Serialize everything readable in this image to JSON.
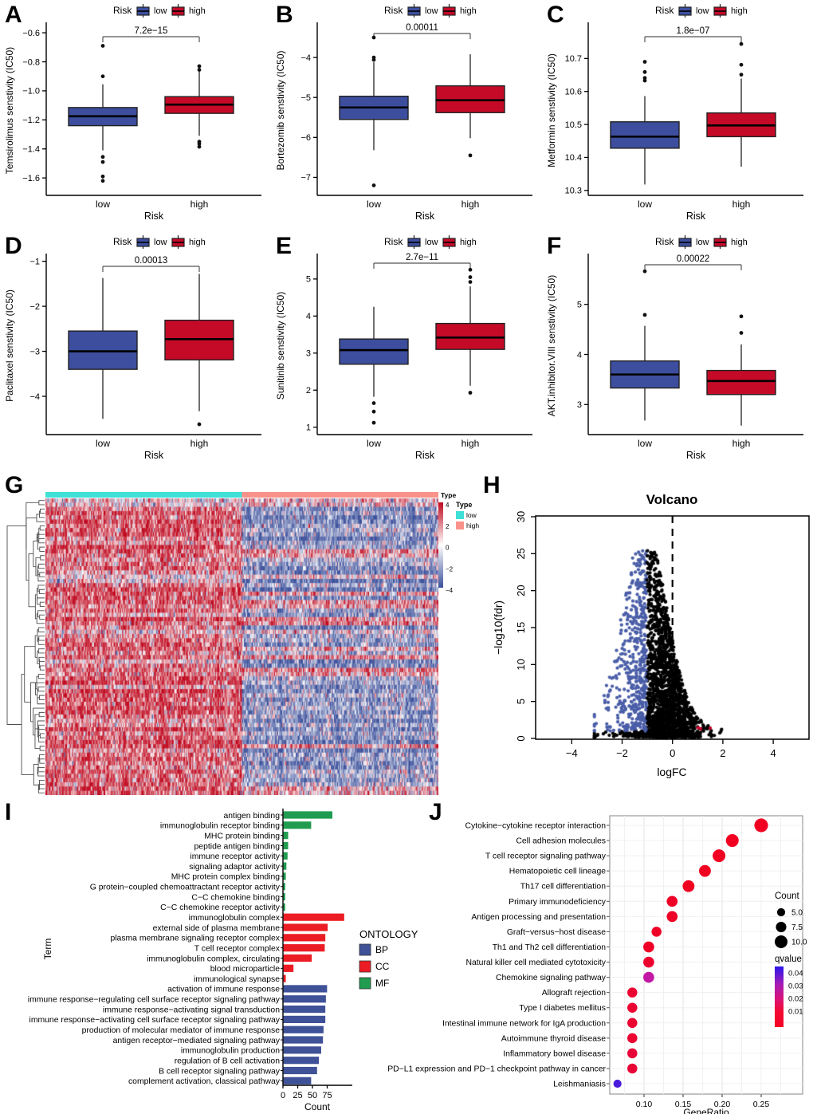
{
  "figure": {
    "panels": [
      "A",
      "B",
      "C",
      "D",
      "E",
      "F",
      "G",
      "H",
      "I",
      "J"
    ]
  },
  "shared": {
    "legend_title": "Risk",
    "group_labels": [
      "low",
      "high"
    ],
    "xlabel": "Risk",
    "colors": {
      "low_blue": "#3D4E9E",
      "high_red": "#C50A28",
      "box_border": "#222222",
      "bracket": "#555555"
    }
  },
  "chart_data": [
    {
      "type": "box",
      "panel": "A",
      "ylabel": "Temsirolimus senstivity (IC50)",
      "p_label": "7.2e−15",
      "ylim": [
        -1.72,
        -0.55
      ],
      "bracket_y": 46,
      "yticks": [
        {
          "v": -0.6,
          "label": "−0.6"
        },
        {
          "v": -0.8,
          "label": "−0.8"
        },
        {
          "v": -1.0,
          "label": "−1.0"
        },
        {
          "v": -1.2,
          "label": "−1.2"
        },
        {
          "v": -1.4,
          "label": "−1.4"
        },
        {
          "v": -1.6,
          "label": "−1.6"
        }
      ],
      "groups": [
        {
          "name": "low",
          "whisker_low": -1.41,
          "q1": -1.24,
          "median": -1.175,
          "q3": -1.115,
          "whisker_high": -0.955,
          "outliers": [
            -0.69,
            -0.9,
            -1.455,
            -1.49,
            -1.59,
            -1.62
          ]
        },
        {
          "name": "high",
          "whisker_low": -1.31,
          "q1": -1.155,
          "median": -1.095,
          "q3": -1.04,
          "whisker_high": -0.845,
          "outliers": [
            -0.83,
            -0.855,
            -1.35,
            -1.365,
            -1.385
          ]
        }
      ]
    },
    {
      "type": "box",
      "panel": "B",
      "ylabel": "Bortezomib senstivity (IC50)",
      "p_label": "0.00011",
      "ylim": [
        -7.45,
        -3.2
      ],
      "bracket_y": 42,
      "yticks": [
        {
          "v": -4,
          "label": "−4"
        },
        {
          "v": -5,
          "label": "−5"
        },
        {
          "v": -6,
          "label": "−6"
        },
        {
          "v": -7,
          "label": "−7"
        }
      ],
      "groups": [
        {
          "name": "low",
          "whisker_low": -6.32,
          "q1": -5.55,
          "median": -5.25,
          "q3": -4.97,
          "whisker_high": -4.12,
          "outliers": [
            -3.5,
            -4.0,
            -4.06,
            -7.2
          ]
        },
        {
          "name": "high",
          "whisker_low": -6.02,
          "q1": -5.38,
          "median": -5.07,
          "q3": -4.71,
          "whisker_high": -3.92,
          "outliers": [
            -6.45
          ]
        }
      ]
    },
    {
      "type": "box",
      "panel": "C",
      "ylabel": "Metformin senstivity (IC50)",
      "p_label": "1.8e−07",
      "ylim": [
        10.285,
        10.8
      ],
      "bracket_y": 46,
      "yticks": [
        {
          "v": 10.7,
          "label": "10.7"
        },
        {
          "v": 10.6,
          "label": "10.6"
        },
        {
          "v": 10.5,
          "label": "10.5"
        },
        {
          "v": 10.4,
          "label": "10.4"
        },
        {
          "v": 10.3,
          "label": "10.3"
        }
      ],
      "groups": [
        {
          "name": "low",
          "whisker_low": 10.318,
          "q1": 10.428,
          "median": 10.463,
          "q3": 10.508,
          "whisker_high": 10.586,
          "outliers": [
            10.633,
            10.641,
            10.659,
            10.69
          ]
        },
        {
          "name": "high",
          "whisker_low": 10.372,
          "q1": 10.463,
          "median": 10.497,
          "q3": 10.535,
          "whisker_high": 10.639,
          "outliers": [
            10.651,
            10.681,
            10.744
          ]
        }
      ]
    },
    {
      "type": "box",
      "panel": "D",
      "ylabel": "Paclitaxel senstivity (IC50)",
      "p_label": "0.00013",
      "ylim": [
        -4.85,
        -0.9
      ],
      "bracket_y": 44,
      "yticks": [
        {
          "v": -1,
          "label": "−1"
        },
        {
          "v": -2,
          "label": "−2"
        },
        {
          "v": -3,
          "label": "−3"
        },
        {
          "v": -4,
          "label": "−4"
        }
      ],
      "groups": [
        {
          "name": "low",
          "whisker_low": -4.5,
          "q1": -3.4,
          "median": -3.0,
          "q3": -2.55,
          "whisker_high": -1.37,
          "outliers": []
        },
        {
          "name": "high",
          "whisker_low": -4.33,
          "q1": -3.19,
          "median": -2.73,
          "q3": -2.31,
          "whisker_high": -1.28,
          "outliers": [
            -4.62
          ]
        }
      ]
    },
    {
      "type": "box",
      "panel": "E",
      "ylabel": "Sunitinib senstivity (IC50)",
      "p_label": "2.7e−11",
      "ylim": [
        0.8,
        5.6
      ],
      "bracket_y": 40,
      "yticks": [
        {
          "v": 5,
          "label": "5"
        },
        {
          "v": 4,
          "label": "4"
        },
        {
          "v": 3,
          "label": "3"
        },
        {
          "v": 2,
          "label": "2"
        },
        {
          "v": 1,
          "label": "1"
        }
      ],
      "groups": [
        {
          "name": "low",
          "whisker_low": 1.82,
          "q1": 2.7,
          "median": 3.08,
          "q3": 3.38,
          "whisker_high": 4.25,
          "outliers": [
            1.12,
            1.42,
            1.65
          ]
        },
        {
          "name": "high",
          "whisker_low": 2.12,
          "q1": 3.1,
          "median": 3.42,
          "q3": 3.8,
          "whisker_high": 4.8,
          "outliers": [
            1.93,
            4.92,
            5.05,
            5.25
          ]
        }
      ]
    },
    {
      "type": "box",
      "panel": "F",
      "ylabel": "AKT.inhibitor.VIII senstivity (IC50)",
      "p_label": "0.00022",
      "ylim": [
        2.4,
        5.95
      ],
      "bracket_y": 42,
      "yticks": [
        {
          "v": 5,
          "label": "5"
        },
        {
          "v": 4,
          "label": "4"
        },
        {
          "v": 3,
          "label": "3"
        }
      ],
      "groups": [
        {
          "name": "low",
          "whisker_low": 2.68,
          "q1": 3.33,
          "median": 3.6,
          "q3": 3.87,
          "whisker_high": 4.57,
          "outliers": [
            4.79,
            5.66
          ]
        },
        {
          "name": "high",
          "whisker_low": 2.58,
          "q1": 3.2,
          "median": 3.47,
          "q3": 3.68,
          "whisker_high": 4.2,
          "outliers": [
            4.43,
            4.76
          ]
        }
      ]
    },
    {
      "type": "heatmap",
      "panel": "G",
      "annotation": {
        "title": "Type",
        "groups": [
          {
            "label": "low",
            "color": "#3FE0D6"
          },
          {
            "label": "high",
            "color": "#F9928A"
          }
        ],
        "split_fraction": 0.5
      },
      "legend": {
        "title": "Type",
        "items": [
          {
            "label": "low",
            "color": "#3FE0D6"
          },
          {
            "label": "high",
            "color": "#F9928A"
          }
        ]
      },
      "colorbar": {
        "ticks": [
          "4",
          "2",
          "0",
          "−2",
          "−4"
        ],
        "max_color": "#C00A20",
        "mid_color": "#FFFFFF",
        "min_color": "#3D519C"
      },
      "rows": 70,
      "cols": 380,
      "value_range": [
        -4,
        4
      ]
    },
    {
      "type": "scatter",
      "panel": "H",
      "title": "Volcano",
      "xlabel": "logFC",
      "ylabel": "−log10(fdr)",
      "xticks": [
        {
          "v": -4,
          "label": "−4"
        },
        {
          "v": -2,
          "label": "−2"
        },
        {
          "v": 0,
          "label": "0"
        },
        {
          "v": 2,
          "label": "2"
        },
        {
          "v": 4,
          "label": "4"
        }
      ],
      "yticks": [
        {
          "v": 0,
          "label": "0"
        },
        {
          "v": 5,
          "label": "5"
        },
        {
          "v": 10,
          "label": "10"
        },
        {
          "v": 15,
          "label": "15"
        },
        {
          "v": 20,
          "label": "20"
        },
        {
          "v": 25,
          "label": "25"
        },
        {
          "v": 30,
          "label": "30"
        }
      ],
      "xlim": [
        -5.4,
        5.4
      ],
      "ylim": [
        0,
        30
      ],
      "threshold_line_x": 0,
      "point_groups": [
        {
          "name": "down-regulated",
          "color": "#4A5EA8",
          "logfc_range": [
            -3.1,
            -1.0
          ],
          "approx_count": 420
        },
        {
          "name": "not-significant",
          "color": "#000000",
          "approx_count": 2200
        },
        {
          "name": "up-regulated",
          "color": "#D1002C",
          "points": [
            [
              1.02,
              1.45
            ],
            [
              1.12,
              1.3
            ],
            [
              1.5,
              1.4
            ]
          ]
        }
      ]
    },
    {
      "type": "bar",
      "panel": "I",
      "xlabel": "Count",
      "ylabel": "Term",
      "xticks": [
        0,
        25,
        50,
        75
      ],
      "legend": {
        "title": "ONTOLOGY",
        "items": [
          {
            "label": "BP",
            "color": "#3F5197"
          },
          {
            "label": "CC",
            "color": "#EC1C24"
          },
          {
            "label": "MF",
            "color": "#1F9C4F"
          }
        ]
      },
      "terms": [
        {
          "label": "antigen binding",
          "ontology": "MF",
          "count": 83
        },
        {
          "label": "immunoglobulin receptor binding",
          "ontology": "MF",
          "count": 47
        },
        {
          "label": "MHC protein binding",
          "ontology": "MF",
          "count": 8
        },
        {
          "label": "peptide antigen binding",
          "ontology": "MF",
          "count": 8
        },
        {
          "label": "immune receptor activity",
          "ontology": "MF",
          "count": 7
        },
        {
          "label": "signaling adaptor activity",
          "ontology": "MF",
          "count": 5
        },
        {
          "label": "MHC protein complex binding",
          "ontology": "MF",
          "count": 4
        },
        {
          "label": "G protein−coupled chemoattractant receptor activity",
          "ontology": "MF",
          "count": 3
        },
        {
          "label": "C−C chemokine binding",
          "ontology": "MF",
          "count": 3
        },
        {
          "label": "C−C chemokine receptor activity",
          "ontology": "MF",
          "count": 3
        },
        {
          "label": "immunoglobulin complex",
          "ontology": "CC",
          "count": 103
        },
        {
          "label": "external side of plasma membrane",
          "ontology": "CC",
          "count": 75
        },
        {
          "label": "plasma membrane signaling receptor complex",
          "ontology": "CC",
          "count": 71
        },
        {
          "label": "T cell receptor complex",
          "ontology": "CC",
          "count": 70
        },
        {
          "label": "immunoglobulin complex, circulating",
          "ontology": "CC",
          "count": 48
        },
        {
          "label": "blood microparticle",
          "ontology": "CC",
          "count": 17
        },
        {
          "label": "immunological synapse",
          "ontology": "CC",
          "count": 4
        },
        {
          "label": "activation of immune response",
          "ontology": "BP",
          "count": 74
        },
        {
          "label": "immune response−regulating cell surface receptor signaling pathway",
          "ontology": "BP",
          "count": 72
        },
        {
          "label": "immune response−activating signal transduction",
          "ontology": "BP",
          "count": 71
        },
        {
          "label": "immune response−activating cell surface receptor signaling pathway",
          "ontology": "BP",
          "count": 71
        },
        {
          "label": "production of molecular mediator of immune response",
          "ontology": "BP",
          "count": 68
        },
        {
          "label": "antigen receptor−mediated signaling pathway",
          "ontology": "BP",
          "count": 67
        },
        {
          "label": "immunoglobulin production",
          "ontology": "BP",
          "count": 64
        },
        {
          "label": "regulation of B cell activation",
          "ontology": "BP",
          "count": 60
        },
        {
          "label": "B cell receptor signaling pathway",
          "ontology": "BP",
          "count": 57
        },
        {
          "label": "complement activation, classical pathway",
          "ontology": "BP",
          "count": 47
        }
      ]
    },
    {
      "type": "scatter",
      "panel": "J",
      "xlabel": "GeneRatio",
      "xticks": [
        {
          "v": 0.1,
          "label": "0.10"
        },
        {
          "v": 0.15,
          "label": "0.15"
        },
        {
          "v": 0.2,
          "label": "0.20"
        },
        {
          "v": 0.25,
          "label": "0.25"
        }
      ],
      "legend_count": {
        "title": "Count",
        "items": [
          "5.0",
          "7.5",
          "10.0"
        ],
        "values": [
          5,
          7.5,
          10
        ]
      },
      "legend_qvalue": {
        "title": "qvalue",
        "ticks": [
          "0.04",
          "0.03",
          "0.02",
          "0.01"
        ],
        "low_q_color": "#F10022",
        "high_q_color": "#2A1DE8"
      },
      "pathways": [
        {
          "label": "Cytokine−cytokine receptor interaction",
          "gene_ratio": 0.25,
          "count": 11,
          "qvalue": 0.001
        },
        {
          "label": "Cell adhesion molecules",
          "gene_ratio": 0.213,
          "count": 10,
          "qvalue": 0.001
        },
        {
          "label": "T cell receptor signaling pathway",
          "gene_ratio": 0.196,
          "count": 10,
          "qvalue": 0.001
        },
        {
          "label": "Hematopoietic cell lineage",
          "gene_ratio": 0.178,
          "count": 9,
          "qvalue": 0.001
        },
        {
          "label": "Th17 cell differentiation",
          "gene_ratio": 0.157,
          "count": 9,
          "qvalue": 0.001
        },
        {
          "label": "Primary immunodeficiency",
          "gene_ratio": 0.136,
          "count": 8,
          "qvalue": 0.002
        },
        {
          "label": "Antigen processing and presentation",
          "gene_ratio": 0.136,
          "count": 8,
          "qvalue": 0.002
        },
        {
          "label": "Graft−versus−host disease",
          "gene_ratio": 0.116,
          "count": 7,
          "qvalue": 0.002
        },
        {
          "label": "Th1 and Th2 cell differentiation",
          "gene_ratio": 0.106,
          "count": 8,
          "qvalue": 0.002
        },
        {
          "label": "Natural killer cell mediated cytotoxicity",
          "gene_ratio": 0.106,
          "count": 8,
          "qvalue": 0.003
        },
        {
          "label": "Chemokine signaling pathway",
          "gene_ratio": 0.106,
          "count": 8,
          "qvalue": 0.025
        },
        {
          "label": "Allograft rejection",
          "gene_ratio": 0.085,
          "count": 7,
          "qvalue": 0.004
        },
        {
          "label": "Type I diabetes mellitus",
          "gene_ratio": 0.085,
          "count": 7,
          "qvalue": 0.004
        },
        {
          "label": "Intestinal immune network for IgA production",
          "gene_ratio": 0.085,
          "count": 7,
          "qvalue": 0.004
        },
        {
          "label": "Autoimmune thyroid disease",
          "gene_ratio": 0.085,
          "count": 7,
          "qvalue": 0.004
        },
        {
          "label": "Inflammatory bowel disease",
          "gene_ratio": 0.085,
          "count": 7,
          "qvalue": 0.005
        },
        {
          "label": "PD−L1 expression and PD−1 checkpoint pathway in cancer",
          "gene_ratio": 0.085,
          "count": 7,
          "qvalue": 0.005
        },
        {
          "label": "Leishmaniasis",
          "gene_ratio": 0.066,
          "count": 5,
          "qvalue": 0.045
        }
      ]
    }
  ]
}
